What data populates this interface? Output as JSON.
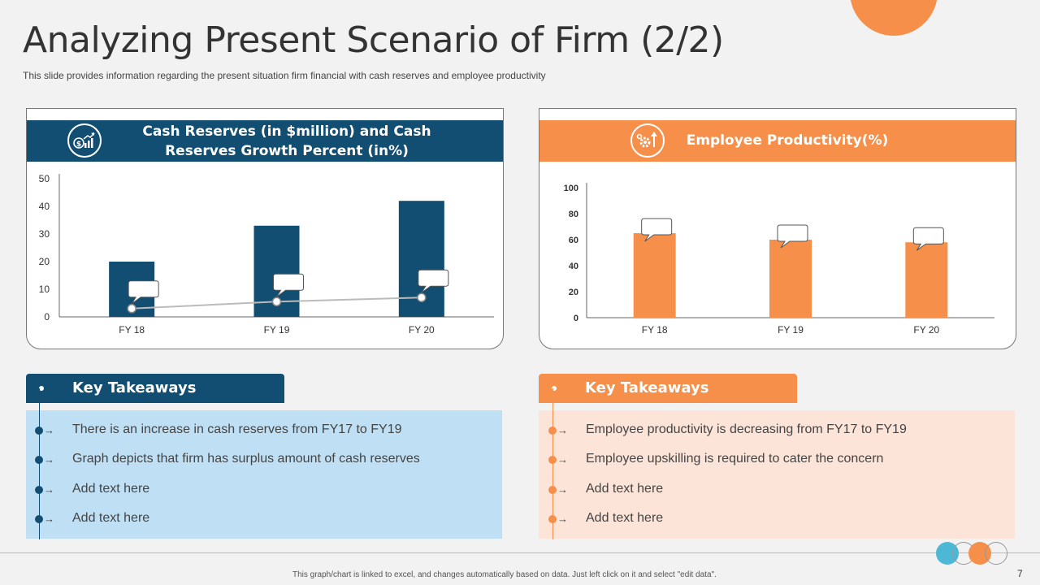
{
  "slide": {
    "title": "Analyzing Present Scenario of Firm (2/2)",
    "subtitle": "This slide provides  information  regarding  the  present  situation  firm  financial  with  cash  reserves  and  employee  productivity",
    "page_number": "7",
    "footer_note": "This graph/chart is linked to excel, and changes automatically based on data. Just left click on it and select \"edit data\"."
  },
  "colors": {
    "navy": "#114e72",
    "orange": "#f58f4a",
    "light_blue": "#bfdff4",
    "light_peach": "#fde4d8",
    "line_gray": "#bbbbbb"
  },
  "icons": {
    "cash_panel": "money-growth-chart-icon",
    "productivity_panel": "gear-arrow-up-icon"
  },
  "panels": {
    "cash": {
      "title_line1": "Cash Reserves (in $million) and Cash",
      "title_line2": "Reserves Growth Percent (in%)"
    },
    "productivity": {
      "title": "Employee Productivity(%)"
    }
  },
  "takeaways": {
    "left": {
      "heading": "Key Takeaways",
      "items": [
        "There is an increase in cash reserves from FY17 to FY19",
        "Graph depicts that firm has surplus amount of cash reserves",
        "Add text here",
        "Add text here"
      ]
    },
    "right": {
      "heading": "Key Takeaways",
      "items": [
        "Employee productivity is decreasing from FY17 to FY19",
        "Employee upskilling is required to cater the concern",
        "Add text here",
        "Add text here"
      ]
    }
  },
  "chart_data": [
    {
      "type": "bar",
      "categories": [
        "FY 18",
        "FY 19",
        "FY 20"
      ],
      "series": [
        {
          "type": "bar",
          "values": [
            20,
            33,
            42
          ],
          "color": "#114e72"
        },
        {
          "type": "line",
          "values": [
            3,
            5.5,
            7
          ],
          "color": "#bbbbbb"
        }
      ],
      "ylim": [
        0,
        50
      ],
      "yticks": [
        0,
        10,
        20,
        30,
        40,
        50
      ],
      "data_labels": "empty callouts",
      "grid": false
    },
    {
      "type": "bar",
      "categories": [
        "FY 18",
        "FY 19",
        "FY 20"
      ],
      "series": [
        {
          "type": "bar",
          "values": [
            65,
            60,
            58
          ],
          "color": "#f58f4a"
        }
      ],
      "ylim": [
        0,
        100
      ],
      "yticks": [
        0,
        20,
        40,
        60,
        80,
        100
      ],
      "data_labels": "empty callouts",
      "grid": false
    }
  ]
}
